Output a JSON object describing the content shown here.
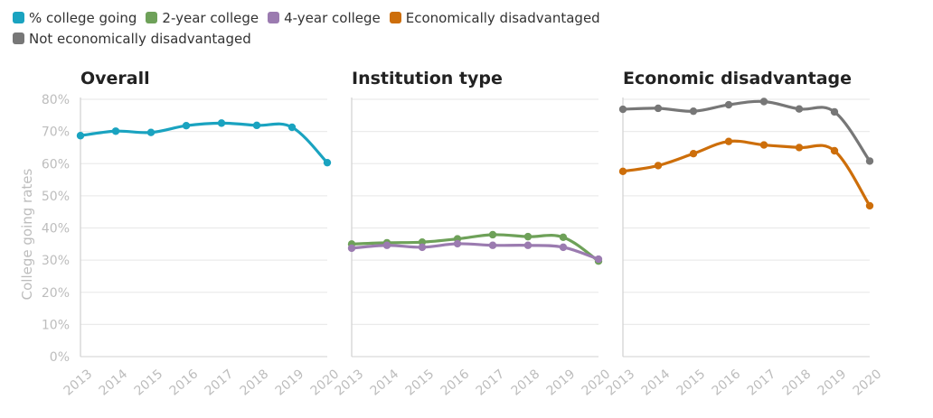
{
  "legend": [
    {
      "label": "% college going",
      "color": "#1aa3c0"
    },
    {
      "label": "2-year college",
      "color": "#6ea159"
    },
    {
      "label": "4-year college",
      "color": "#9b7bb0"
    },
    {
      "label": "Economically disadvantaged",
      "color": "#cd6e0a"
    },
    {
      "label": "Not economically disadvantaged",
      "color": "#777777"
    }
  ],
  "chart_data": [
    {
      "type": "line",
      "title": "Overall",
      "ylabel": "College going rates",
      "xlabel": "",
      "x": [
        "2013",
        "2014",
        "2015",
        "2016",
        "2017",
        "2018",
        "2019",
        "2020"
      ],
      "ylim": [
        0,
        80
      ],
      "yticks": [
        "0%",
        "10%",
        "20%",
        "30%",
        "40%",
        "50%",
        "60%",
        "70%",
        "80%"
      ],
      "grid": true,
      "series": [
        {
          "name": "% college going",
          "color": "#1aa3c0",
          "values": [
            68.7,
            70.1,
            69.7,
            71.8,
            72.6,
            71.9,
            71.3,
            60.3
          ]
        }
      ]
    },
    {
      "type": "line",
      "title": "Institution type",
      "x": [
        "2013",
        "2014",
        "2015",
        "2016",
        "2017",
        "2018",
        "2019",
        "2020"
      ],
      "ylim": [
        0,
        80
      ],
      "grid": true,
      "series": [
        {
          "name": "2-year college",
          "color": "#6ea159",
          "values": [
            35.0,
            35.4,
            35.6,
            36.6,
            37.9,
            37.3,
            37.1,
            29.7
          ]
        },
        {
          "name": "4-year college",
          "color": "#9b7bb0",
          "values": [
            33.7,
            34.6,
            34.0,
            35.1,
            34.6,
            34.6,
            34.0,
            30.3
          ]
        }
      ]
    },
    {
      "type": "line",
      "title": "Economic disadvantage",
      "x": [
        "2013",
        "2014",
        "2015",
        "2016",
        "2017",
        "2018",
        "2019",
        "2020"
      ],
      "ylim": [
        0,
        80
      ],
      "grid": true,
      "series": [
        {
          "name": "Not economically disadvantaged",
          "color": "#777777",
          "values": [
            76.9,
            77.2,
            76.3,
            78.3,
            79.3,
            77.0,
            76.1,
            60.8
          ]
        },
        {
          "name": "Economically disadvantaged",
          "color": "#cd6e0a",
          "values": [
            57.6,
            59.4,
            63.1,
            66.9,
            65.8,
            65.0,
            64.0,
            46.9
          ]
        }
      ]
    }
  ]
}
